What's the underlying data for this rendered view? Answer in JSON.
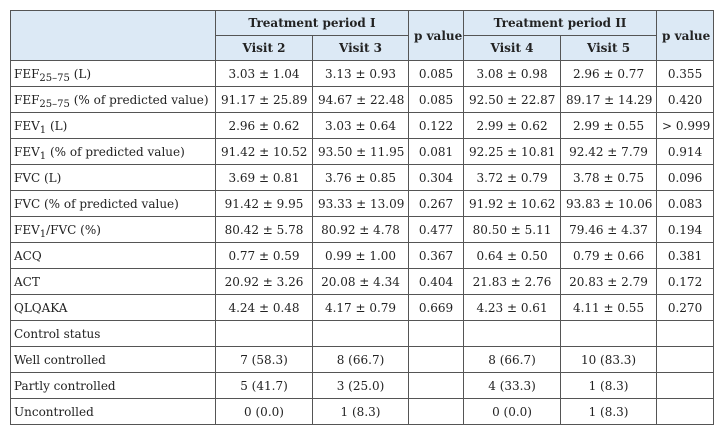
{
  "table": {
    "header": {
      "group_1": "Treatment period I",
      "p_value_1": "p value",
      "group_2": "Treatment period II",
      "p_value_2": "p value",
      "visits": [
        "Visit 2",
        "Visit 3",
        "Visit 4",
        "Visit 5"
      ]
    },
    "rows": [
      {
        "label": {
          "text": "FEF",
          "sub": "25–75",
          "suffix": " (L)"
        },
        "cells": [
          "3.03 ± 1.04",
          "3.13 ± 0.93",
          "0.085",
          "3.08 ± 0.98",
          "2.96 ± 0.77",
          "0.355"
        ]
      },
      {
        "label": {
          "text": "FEF",
          "sub": "25–75",
          "suffix": " (% of predicted value)"
        },
        "cells": [
          "91.17 ± 25.89",
          "94.67 ± 22.48",
          "0.085",
          "92.50 ± 22.87",
          "89.17 ± 14.29",
          "0.420"
        ]
      },
      {
        "label": {
          "text": "FEV",
          "sub": "1",
          "suffix": " (L)"
        },
        "cells": [
          "2.96 ± 0.62",
          "3.03 ± 0.64",
          "0.122",
          "2.99 ± 0.62",
          "2.99 ± 0.55",
          "> 0.999"
        ]
      },
      {
        "label": {
          "text": "FEV",
          "sub": "1",
          "suffix": " (% of predicted value)"
        },
        "cells": [
          "91.42 ± 10.52",
          "93.50 ± 11.95",
          "0.081",
          "92.25 ± 10.81",
          "92.42 ± 7.79",
          "0.914"
        ]
      },
      {
        "label": "FVC (L)",
        "cells": [
          "3.69 ± 0.81",
          "3.76 ± 0.85",
          "0.304",
          "3.72 ± 0.79",
          "3.78 ± 0.75",
          "0.096"
        ]
      },
      {
        "label": "FVC (% of predicted value)",
        "cells": [
          "91.42 ± 9.95",
          "93.33 ± 13.09",
          "0.267",
          "91.92 ± 10.62",
          "93.83 ± 10.06",
          "0.083"
        ]
      },
      {
        "label": {
          "text": "FEV",
          "sub": "1",
          "suffix": "/FVC (%)"
        },
        "cells": [
          "80.42 ± 5.78",
          "80.92 ± 4.78",
          "0.477",
          "80.50 ± 5.11",
          "79.46 ± 4.37",
          "0.194"
        ]
      },
      {
        "label": "ACQ",
        "cells": [
          "0.77 ± 0.59",
          "0.99 ± 1.00",
          "0.367",
          "0.64 ± 0.50",
          "0.79 ± 0.66",
          "0.381"
        ]
      },
      {
        "label": "ACT",
        "cells": [
          "20.92 ± 3.26",
          "20.08 ± 4.34",
          "0.404",
          "21.83 ± 2.76",
          "20.83 ± 2.79",
          "0.172"
        ]
      },
      {
        "label": "QLQAKA",
        "cells": [
          "4.24 ± 0.48",
          "4.17 ± 0.79",
          "0.669",
          "4.23 ± 0.61",
          "4.11 ± 0.55",
          "0.270"
        ]
      },
      {
        "label": "Control status",
        "cells": [
          null,
          null,
          null,
          null,
          null,
          null
        ]
      },
      {
        "label": "Well controlled",
        "cells": [
          "7 (58.3)",
          "8 (66.7)",
          null,
          "8 (66.7)",
          "10 (83.3)",
          null
        ]
      },
      {
        "label": "Partly controlled",
        "cells": [
          "5 (41.7)",
          "3 (25.0)",
          null,
          "4 (33.3)",
          "1 (8.3)",
          null
        ]
      },
      {
        "label": "Uncontrolled",
        "cells": [
          "0 (0.0)",
          "1 (8.3)",
          null,
          "0 (0.0)",
          "1 (8.3)",
          null
        ]
      }
    ]
  }
}
